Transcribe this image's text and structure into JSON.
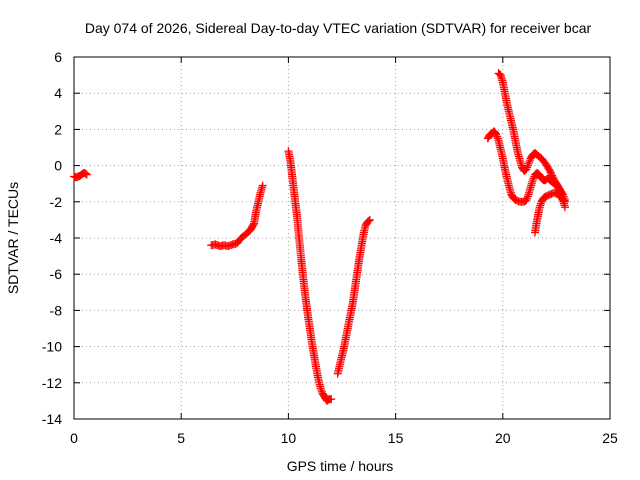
{
  "chart_data": {
    "type": "scatter",
    "title": "Day 074 of 2026, Sidereal Day-to-day VTEC variation (SDTVAR) for receiver bcar",
    "xlabel": "GPS time / hours",
    "ylabel": "SDTVAR / TECUs",
    "xlim": [
      0,
      25
    ],
    "ylim": [
      -14,
      6
    ],
    "xticks": [
      0,
      5,
      10,
      15,
      20,
      25
    ],
    "yticks": [
      -14,
      -12,
      -10,
      -8,
      -6,
      -4,
      -2,
      0,
      2,
      4,
      6
    ],
    "grid": true,
    "marker": "plus",
    "color": "#ff0000",
    "series": [
      {
        "points": [
          [
            0.0,
            -0.6
          ],
          [
            0.1,
            -0.65
          ],
          [
            0.2,
            -0.6
          ],
          [
            0.3,
            -0.55
          ],
          [
            0.4,
            -0.45
          ],
          [
            0.5,
            -0.4
          ],
          [
            0.6,
            -0.5
          ]
        ]
      },
      {
        "points": [
          [
            6.4,
            -4.4
          ],
          [
            6.6,
            -4.35
          ],
          [
            6.8,
            -4.45
          ],
          [
            7.0,
            -4.4
          ],
          [
            7.2,
            -4.45
          ],
          [
            7.4,
            -4.35
          ],
          [
            7.6,
            -4.3
          ],
          [
            7.8,
            -4.0
          ],
          [
            8.0,
            -3.8
          ],
          [
            8.2,
            -3.6
          ],
          [
            8.3,
            -3.4
          ],
          [
            8.4,
            -3.2
          ],
          [
            8.5,
            -2.5
          ],
          [
            8.6,
            -2.0
          ],
          [
            8.7,
            -1.5
          ],
          [
            8.8,
            -1.1
          ]
        ]
      },
      {
        "points": [
          [
            10.0,
            0.8
          ],
          [
            10.1,
            0.2
          ],
          [
            10.2,
            -0.8
          ],
          [
            10.3,
            -1.8
          ],
          [
            10.4,
            -2.8
          ],
          [
            10.5,
            -4.0
          ],
          [
            10.6,
            -5.2
          ],
          [
            10.7,
            -6.3
          ],
          [
            10.8,
            -7.3
          ],
          [
            10.9,
            -8.2
          ],
          [
            11.0,
            -9.0
          ],
          [
            11.1,
            -9.8
          ],
          [
            11.2,
            -10.5
          ],
          [
            11.3,
            -11.2
          ],
          [
            11.4,
            -11.8
          ],
          [
            11.5,
            -12.3
          ],
          [
            11.6,
            -12.6
          ],
          [
            11.7,
            -12.8
          ],
          [
            11.8,
            -13.0
          ],
          [
            11.9,
            -12.9
          ],
          [
            12.0,
            -12.9
          ]
        ]
      },
      {
        "points": [
          [
            12.3,
            -11.5
          ],
          [
            12.4,
            -11.0
          ],
          [
            12.5,
            -10.5
          ],
          [
            12.6,
            -10.0
          ],
          [
            12.7,
            -9.4
          ],
          [
            12.8,
            -8.8
          ],
          [
            12.9,
            -8.2
          ],
          [
            13.0,
            -7.6
          ],
          [
            13.1,
            -6.8
          ],
          [
            13.2,
            -6.0
          ],
          [
            13.3,
            -5.2
          ],
          [
            13.4,
            -4.5
          ],
          [
            13.5,
            -3.8
          ],
          [
            13.6,
            -3.3
          ],
          [
            13.7,
            -3.1
          ],
          [
            13.8,
            -3.0
          ]
        ]
      },
      {
        "points": [
          [
            19.8,
            5.1
          ],
          [
            19.9,
            5.0
          ],
          [
            20.0,
            4.6
          ],
          [
            20.1,
            4.0
          ],
          [
            20.2,
            3.4
          ],
          [
            20.3,
            2.9
          ],
          [
            20.4,
            2.4
          ],
          [
            20.5,
            1.9
          ],
          [
            20.6,
            1.3
          ],
          [
            20.7,
            0.7
          ],
          [
            20.8,
            0.3
          ],
          [
            20.9,
            -0.1
          ],
          [
            21.0,
            -0.3
          ],
          [
            21.1,
            -0.2
          ],
          [
            21.2,
            0.1
          ],
          [
            21.3,
            0.4
          ],
          [
            21.4,
            0.6
          ],
          [
            21.5,
            0.7
          ],
          [
            21.6,
            0.6
          ],
          [
            21.8,
            0.4
          ],
          [
            22.0,
            0.1
          ],
          [
            22.2,
            -0.3
          ],
          [
            22.4,
            -0.8
          ],
          [
            22.5,
            -1.0
          ],
          [
            22.6,
            -1.2
          ],
          [
            22.7,
            -1.5
          ],
          [
            22.8,
            -1.9
          ],
          [
            22.9,
            -2.3
          ]
        ]
      },
      {
        "points": [
          [
            19.3,
            1.5
          ],
          [
            19.4,
            1.7
          ],
          [
            19.5,
            1.8
          ],
          [
            19.6,
            1.9
          ],
          [
            19.7,
            1.7
          ],
          [
            19.8,
            1.4
          ],
          [
            19.9,
            0.9
          ],
          [
            20.0,
            0.4
          ],
          [
            20.1,
            -0.2
          ],
          [
            20.2,
            -0.7
          ],
          [
            20.3,
            -1.2
          ],
          [
            20.4,
            -1.6
          ],
          [
            20.5,
            -1.8
          ],
          [
            20.6,
            -1.9
          ],
          [
            20.8,
            -2.0
          ],
          [
            21.0,
            -2.0
          ],
          [
            21.1,
            -1.9
          ],
          [
            21.2,
            -1.6
          ],
          [
            21.3,
            -1.2
          ],
          [
            21.4,
            -0.8
          ],
          [
            21.5,
            -0.5
          ],
          [
            21.6,
            -0.4
          ],
          [
            21.7,
            -0.5
          ],
          [
            21.8,
            -0.7
          ],
          [
            21.9,
            -0.8
          ],
          [
            22.0,
            -0.8
          ],
          [
            22.1,
            -0.7
          ],
          [
            22.2,
            -0.8
          ],
          [
            22.3,
            -0.9
          ],
          [
            22.4,
            -1.0
          ],
          [
            22.5,
            -1.1
          ],
          [
            22.6,
            -1.2
          ],
          [
            22.7,
            -1.4
          ],
          [
            22.8,
            -1.6
          ],
          [
            22.9,
            -1.9
          ]
        ]
      },
      {
        "points": [
          [
            21.5,
            -3.7
          ],
          [
            21.6,
            -3.0
          ],
          [
            21.7,
            -2.4
          ],
          [
            21.8,
            -2.0
          ],
          [
            21.9,
            -1.8
          ],
          [
            22.0,
            -1.7
          ],
          [
            22.2,
            -1.6
          ],
          [
            22.4,
            -1.5
          ],
          [
            22.6,
            -1.6
          ],
          [
            22.7,
            -1.7
          ],
          [
            22.8,
            -1.9
          ],
          [
            22.9,
            -2.0
          ]
        ]
      }
    ]
  }
}
